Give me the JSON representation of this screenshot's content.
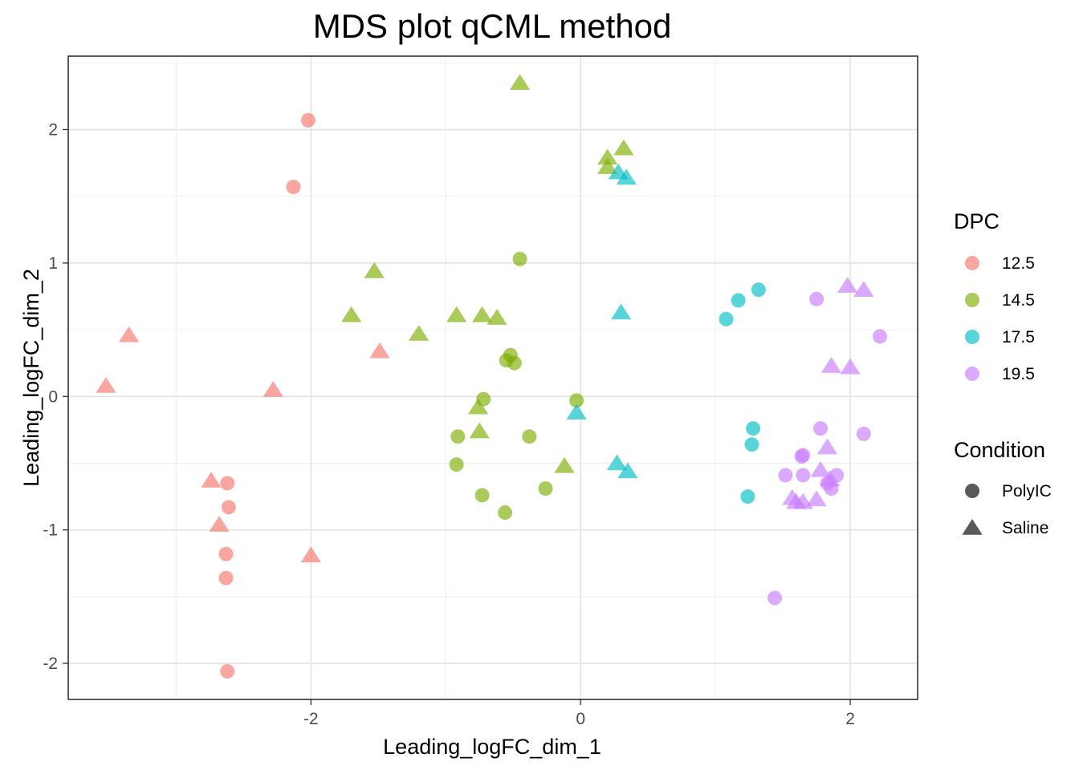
{
  "chart_data": {
    "type": "scatter",
    "title": "MDS plot qCML method",
    "xlabel": "Leading_logFC_dim_1",
    "ylabel": "Leading_logFC_dim_2",
    "xlim": [
      -3.8,
      2.5
    ],
    "ylim": [
      -2.27,
      2.55
    ],
    "xticks": [
      -2,
      0,
      2
    ],
    "xtick_labels": [
      "-2",
      "0",
      "2"
    ],
    "yticks": [
      -2,
      -1,
      0,
      1,
      2
    ],
    "ytick_labels": [
      "-2",
      "-1",
      "0",
      "1",
      "2"
    ],
    "grid": true,
    "legend_position": "right",
    "legends": [
      {
        "title": "DPC",
        "kind": "color",
        "entries": [
          {
            "label": "12.5",
            "color": "#F8766D"
          },
          {
            "label": "14.5",
            "color": "#7CAE00"
          },
          {
            "label": "17.5",
            "color": "#00BFC4"
          },
          {
            "label": "19.5",
            "color": "#C77CFF"
          }
        ]
      },
      {
        "title": "Condition",
        "kind": "shape",
        "entries": [
          {
            "label": "PolyIC",
            "shape": "circle"
          },
          {
            "label": "Saline",
            "shape": "triangle"
          }
        ]
      }
    ],
    "point_alpha": 0.65,
    "series": [
      {
        "dpc": "12.5",
        "condition": "PolyIC",
        "color": "#F8766D",
        "shape": "circle",
        "points": [
          [
            -2.02,
            2.07
          ],
          [
            -2.13,
            1.57
          ],
          [
            -2.62,
            -0.65
          ],
          [
            -2.61,
            -0.83
          ],
          [
            -2.63,
            -1.18
          ],
          [
            -2.63,
            -1.36
          ],
          [
            -2.62,
            -2.06
          ]
        ]
      },
      {
        "dpc": "12.5",
        "condition": "Saline",
        "color": "#F8766D",
        "shape": "triangle",
        "points": [
          [
            -3.35,
            0.46
          ],
          [
            -3.52,
            0.08
          ],
          [
            -2.28,
            0.05
          ],
          [
            -1.49,
            0.34
          ],
          [
            -2.74,
            -0.63
          ],
          [
            -2.68,
            -0.96
          ],
          [
            -2.0,
            -1.19
          ]
        ]
      },
      {
        "dpc": "14.5",
        "condition": "PolyIC",
        "color": "#7CAE00",
        "shape": "circle",
        "points": [
          [
            -0.45,
            1.03
          ],
          [
            -0.52,
            0.31
          ],
          [
            -0.55,
            0.27
          ],
          [
            -0.49,
            0.25
          ],
          [
            -0.72,
            -0.02
          ],
          [
            -0.03,
            -0.03
          ],
          [
            -0.91,
            -0.3
          ],
          [
            -0.38,
            -0.3
          ],
          [
            -0.92,
            -0.51
          ],
          [
            -0.73,
            -0.74
          ],
          [
            -0.26,
            -0.69
          ],
          [
            -0.56,
            -0.87
          ]
        ]
      },
      {
        "dpc": "14.5",
        "condition": "Saline",
        "color": "#7CAE00",
        "shape": "triangle",
        "points": [
          [
            -0.45,
            2.35
          ],
          [
            0.32,
            1.86
          ],
          [
            0.2,
            1.79
          ],
          [
            0.2,
            1.72
          ],
          [
            -1.53,
            0.94
          ],
          [
            -1.7,
            0.61
          ],
          [
            -1.2,
            0.47
          ],
          [
            -0.92,
            0.61
          ],
          [
            -0.73,
            0.61
          ],
          [
            -0.62,
            0.59
          ],
          [
            -0.76,
            -0.08
          ],
          [
            -0.75,
            -0.26
          ],
          [
            -0.12,
            -0.52
          ]
        ]
      },
      {
        "dpc": "17.5",
        "condition": "PolyIC",
        "color": "#00BFC4",
        "shape": "circle",
        "points": [
          [
            1.32,
            0.8
          ],
          [
            1.17,
            0.72
          ],
          [
            1.08,
            0.58
          ],
          [
            1.28,
            -0.24
          ],
          [
            1.27,
            -0.36
          ],
          [
            1.24,
            -0.75
          ]
        ]
      },
      {
        "dpc": "17.5",
        "condition": "Saline",
        "color": "#00BFC4",
        "shape": "triangle",
        "points": [
          [
            0.28,
            1.68
          ],
          [
            0.34,
            1.64
          ],
          [
            0.3,
            0.63
          ],
          [
            -0.03,
            -0.12
          ],
          [
            0.27,
            -0.5
          ],
          [
            0.35,
            -0.56
          ]
        ]
      },
      {
        "dpc": "19.5",
        "condition": "PolyIC",
        "color": "#C77CFF",
        "shape": "circle",
        "points": [
          [
            1.75,
            0.73
          ],
          [
            2.22,
            0.45
          ],
          [
            1.78,
            -0.24
          ],
          [
            2.1,
            -0.28
          ],
          [
            1.65,
            -0.44
          ],
          [
            1.64,
            -0.45
          ],
          [
            1.52,
            -0.59
          ],
          [
            1.65,
            -0.59
          ],
          [
            1.83,
            -0.65
          ],
          [
            1.9,
            -0.59
          ],
          [
            1.86,
            -0.69
          ],
          [
            1.44,
            -1.51
          ]
        ]
      },
      {
        "dpc": "19.5",
        "condition": "Saline",
        "color": "#C77CFF",
        "shape": "triangle",
        "points": [
          [
            1.98,
            0.83
          ],
          [
            2.1,
            0.8
          ],
          [
            1.86,
            0.23
          ],
          [
            2.0,
            0.22
          ],
          [
            1.83,
            -0.38
          ],
          [
            1.78,
            -0.55
          ],
          [
            1.85,
            -0.62
          ],
          [
            1.57,
            -0.76
          ],
          [
            1.6,
            -0.79
          ],
          [
            1.65,
            -0.79
          ],
          [
            1.75,
            -0.77
          ]
        ]
      }
    ]
  }
}
